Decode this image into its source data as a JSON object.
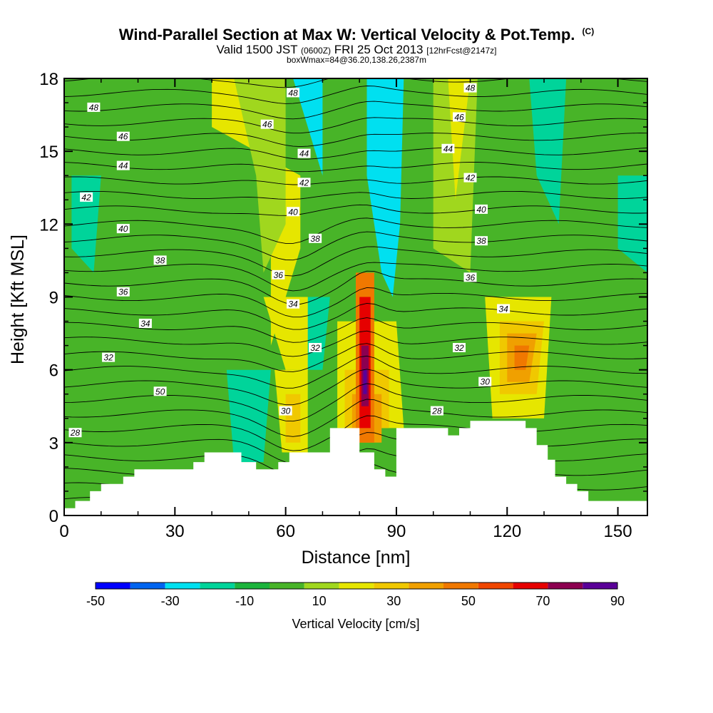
{
  "chart_data": {
    "type": "contour",
    "title": "Wind-Parallel Section at Max W: Vertical Velocity & Pot.Temp.",
    "copyright": "(C)",
    "subtitle_main": "Valid 1500 JST",
    "subtitle_zulu": "(0600Z)",
    "subtitle_date": "FRI 25 Oct 2013",
    "subtitle_fcst": "[12hrFcst@2147z]",
    "subtitle2": "boxWmax=84@36.20,138.26,2387m",
    "xlabel": "Distance [nm]",
    "ylabel": "Height [Kft MSL]",
    "xlim": [
      0,
      158
    ],
    "ylim": [
      0,
      18
    ],
    "x_ticks": [
      0,
      30,
      60,
      90,
      120,
      150
    ],
    "y_ticks": [
      0,
      3,
      6,
      9,
      12,
      15,
      18
    ],
    "colorbar": {
      "label": "Vertical Velocity [cm/s]",
      "levels": [
        -50,
        -40,
        -30,
        -20,
        -10,
        0,
        10,
        20,
        30,
        40,
        50,
        60,
        70,
        80,
        90
      ],
      "tick_labels": [
        "-50",
        "-30",
        "-10",
        "10",
        "30",
        "50",
        "70",
        "90"
      ],
      "colors": [
        "#0000ff",
        "#0064f0",
        "#00e0f0",
        "#00d49a",
        "#1cb43c",
        "#48b428",
        "#a0d71e",
        "#e6e600",
        "#f0c800",
        "#f0a000",
        "#f07800",
        "#f04600",
        "#e60000",
        "#8c0050",
        "#5a0098"
      ]
    },
    "theta_labels": [
      {
        "text": "48",
        "x": 8,
        "y": 16.8
      },
      {
        "text": "46",
        "x": 16,
        "y": 15.6
      },
      {
        "text": "44",
        "x": 16,
        "y": 14.4
      },
      {
        "text": "42",
        "x": 6,
        "y": 13.1
      },
      {
        "text": "40",
        "x": 16,
        "y": 11.8
      },
      {
        "text": "38",
        "x": 26,
        "y": 10.5
      },
      {
        "text": "36",
        "x": 16,
        "y": 9.2
      },
      {
        "text": "34",
        "x": 22,
        "y": 7.9
      },
      {
        "text": "32",
        "x": 12,
        "y": 6.5
      },
      {
        "text": "50",
        "x": 26,
        "y": 5.1
      },
      {
        "text": "28",
        "x": 3,
        "y": 3.4
      },
      {
        "text": "48",
        "x": 62,
        "y": 17.4
      },
      {
        "text": "46",
        "x": 55,
        "y": 16.1
      },
      {
        "text": "44",
        "x": 65,
        "y": 14.9
      },
      {
        "text": "42",
        "x": 65,
        "y": 13.7
      },
      {
        "text": "40",
        "x": 62,
        "y": 12.5
      },
      {
        "text": "38",
        "x": 68,
        "y": 11.4
      },
      {
        "text": "36",
        "x": 58,
        "y": 9.9
      },
      {
        "text": "34",
        "x": 62,
        "y": 8.7
      },
      {
        "text": "32",
        "x": 68,
        "y": 6.9
      },
      {
        "text": "30",
        "x": 60,
        "y": 4.3
      },
      {
        "text": "48",
        "x": 110,
        "y": 17.6
      },
      {
        "text": "46",
        "x": 107,
        "y": 16.4
      },
      {
        "text": "44",
        "x": 104,
        "y": 15.1
      },
      {
        "text": "42",
        "x": 110,
        "y": 13.9
      },
      {
        "text": "40",
        "x": 113,
        "y": 12.6
      },
      {
        "text": "38",
        "x": 113,
        "y": 11.3
      },
      {
        "text": "36",
        "x": 110,
        "y": 9.8
      },
      {
        "text": "34",
        "x": 119,
        "y": 8.5
      },
      {
        "text": "32",
        "x": 107,
        "y": 6.9
      },
      {
        "text": "30",
        "x": 114,
        "y": 5.5
      },
      {
        "text": "28",
        "x": 101,
        "y": 4.3
      }
    ],
    "terrain": [
      [
        0,
        0.3
      ],
      [
        3,
        0.3
      ],
      [
        3,
        0.6
      ],
      [
        7,
        0.6
      ],
      [
        7,
        1.0
      ],
      [
        10,
        1.0
      ],
      [
        10,
        1.3
      ],
      [
        16,
        1.3
      ],
      [
        16,
        1.6
      ],
      [
        19,
        1.6
      ],
      [
        19,
        1.9
      ],
      [
        35,
        1.9
      ],
      [
        35,
        2.2
      ],
      [
        38,
        2.2
      ],
      [
        38,
        2.6
      ],
      [
        48,
        2.6
      ],
      [
        48,
        2.2
      ],
      [
        52,
        2.2
      ],
      [
        52,
        1.9
      ],
      [
        58,
        1.9
      ],
      [
        58,
        2.2
      ],
      [
        61,
        2.2
      ],
      [
        61,
        2.6
      ],
      [
        72,
        2.6
      ],
      [
        72,
        3.6
      ],
      [
        80,
        3.6
      ],
      [
        80,
        2.6
      ],
      [
        84,
        2.6
      ],
      [
        84,
        1.9
      ],
      [
        87,
        1.9
      ],
      [
        87,
        1.6
      ],
      [
        90,
        1.6
      ],
      [
        90,
        3.6
      ],
      [
        104,
        3.6
      ],
      [
        104,
        3.3
      ],
      [
        107,
        3.3
      ],
      [
        107,
        3.6
      ],
      [
        110,
        3.6
      ],
      [
        110,
        3.9
      ],
      [
        125,
        3.9
      ],
      [
        125,
        3.6
      ],
      [
        128,
        3.6
      ],
      [
        128,
        2.9
      ],
      [
        131,
        2.9
      ],
      [
        131,
        2.3
      ],
      [
        133,
        2.3
      ],
      [
        133,
        1.6
      ],
      [
        136,
        1.6
      ],
      [
        136,
        1.3
      ],
      [
        139,
        1.3
      ],
      [
        139,
        1.0
      ],
      [
        142,
        1.0
      ],
      [
        142,
        0.6
      ],
      [
        158,
        0.6
      ]
    ],
    "w_bands": [
      {
        "color": "#e6e600",
        "pts": [
          [
            40,
            16
          ],
          [
            64,
            14
          ],
          [
            64,
            11
          ],
          [
            58,
            8
          ],
          [
            56,
            7
          ],
          [
            56,
            15
          ],
          [
            48,
            18
          ],
          [
            40,
            18
          ]
        ]
      },
      {
        "color": "#a0d71e",
        "pts": [
          [
            46,
            18
          ],
          [
            60,
            18
          ],
          [
            60,
            12
          ],
          [
            54,
            10
          ],
          [
            52,
            14
          ]
        ]
      },
      {
        "color": "#a0d71e",
        "pts": [
          [
            100,
            18
          ],
          [
            112,
            18
          ],
          [
            110,
            10
          ],
          [
            100,
            11
          ]
        ]
      },
      {
        "color": "#e6e600",
        "pts": [
          [
            104,
            18
          ],
          [
            110,
            18
          ],
          [
            106,
            13
          ]
        ]
      },
      {
        "color": "#00e0f0",
        "pts": [
          [
            62,
            18
          ],
          [
            70,
            18
          ],
          [
            70,
            14
          ],
          [
            66,
            16
          ]
        ]
      },
      {
        "color": "#00e0f0",
        "pts": [
          [
            86,
            18
          ],
          [
            92,
            18
          ],
          [
            91,
            12
          ],
          [
            89,
            9
          ],
          [
            86,
            10
          ],
          [
            82,
            14
          ],
          [
            82,
            18
          ]
        ]
      },
      {
        "color": "#00d49a",
        "pts": [
          [
            58,
            9
          ],
          [
            72,
            9
          ],
          [
            70,
            6
          ],
          [
            64,
            6
          ]
        ]
      },
      {
        "color": "#00e0f0",
        "pts": [
          [
            46,
            5
          ],
          [
            54,
            5
          ],
          [
            52,
            2.6
          ],
          [
            48,
            2.6
          ]
        ]
      },
      {
        "color": "#00d49a",
        "pts": [
          [
            44,
            6
          ],
          [
            56,
            6
          ],
          [
            54,
            2.2
          ],
          [
            46,
            2.2
          ]
        ]
      },
      {
        "color": "#00d49a",
        "pts": [
          [
            126,
            18
          ],
          [
            136,
            18
          ],
          [
            134,
            12
          ],
          [
            128,
            14
          ]
        ]
      },
      {
        "color": "#00d49a",
        "pts": [
          [
            150,
            14
          ],
          [
            160,
            14
          ],
          [
            158,
            10
          ],
          [
            150,
            11
          ]
        ]
      },
      {
        "color": "#00d49a",
        "pts": [
          [
            2,
            14
          ],
          [
            10,
            14
          ],
          [
            8,
            10
          ],
          [
            2,
            11
          ]
        ]
      },
      {
        "color": "#e6e600",
        "pts": [
          [
            114,
            9
          ],
          [
            132,
            9
          ],
          [
            130,
            4
          ],
          [
            116,
            4
          ]
        ]
      },
      {
        "color": "#f0c800",
        "pts": [
          [
            118,
            8
          ],
          [
            130,
            8
          ],
          [
            128,
            5
          ],
          [
            118,
            5
          ]
        ]
      },
      {
        "color": "#f0a000",
        "pts": [
          [
            120,
            7.5
          ],
          [
            128,
            7.5
          ],
          [
            126,
            5.5
          ],
          [
            120,
            5.5
          ]
        ]
      },
      {
        "color": "#f07800",
        "pts": [
          [
            122,
            7
          ],
          [
            126,
            7
          ],
          [
            125,
            6
          ],
          [
            122,
            6
          ]
        ]
      },
      {
        "color": "#e6e600",
        "pts": [
          [
            54,
            9
          ],
          [
            66,
            9
          ],
          [
            66,
            6
          ],
          [
            60,
            6
          ]
        ]
      },
      {
        "color": "#e6e600",
        "pts": [
          [
            57,
            6
          ],
          [
            66,
            6
          ],
          [
            66,
            2.6
          ],
          [
            59,
            2.6
          ]
        ]
      },
      {
        "color": "#f0c800",
        "pts": [
          [
            60,
            5
          ],
          [
            64,
            5
          ],
          [
            64,
            3
          ],
          [
            60,
            3
          ]
        ]
      },
      {
        "color": "#e6e600",
        "pts": [
          [
            74,
            8
          ],
          [
            90,
            8
          ],
          [
            92,
            3.6
          ],
          [
            74,
            3.6
          ]
        ]
      },
      {
        "color": "#f0c800",
        "pts": [
          [
            76,
            6
          ],
          [
            88,
            6
          ],
          [
            88,
            3.6
          ],
          [
            76,
            3.6
          ]
        ]
      },
      {
        "color": "#f0a000",
        "pts": [
          [
            78,
            5
          ],
          [
            86,
            5
          ],
          [
            86,
            3
          ],
          [
            78,
            3
          ]
        ]
      },
      {
        "color": "#f07800",
        "pts": [
          [
            79,
            10
          ],
          [
            84,
            10
          ],
          [
            84,
            3
          ],
          [
            79,
            3
          ]
        ]
      },
      {
        "color": "#e60000",
        "pts": [
          [
            80,
            9
          ],
          [
            83,
            9
          ],
          [
            83,
            3.6
          ],
          [
            80,
            3.6
          ]
        ]
      },
      {
        "color": "#8c0050",
        "pts": [
          [
            80.5,
            7
          ],
          [
            82.5,
            7
          ],
          [
            82.5,
            4.5
          ],
          [
            80.5,
            4.5
          ]
        ]
      },
      {
        "color": "#5a0098",
        "pts": [
          [
            81,
            6
          ],
          [
            82,
            6
          ],
          [
            82,
            5
          ],
          [
            81,
            5
          ]
        ]
      }
    ]
  }
}
